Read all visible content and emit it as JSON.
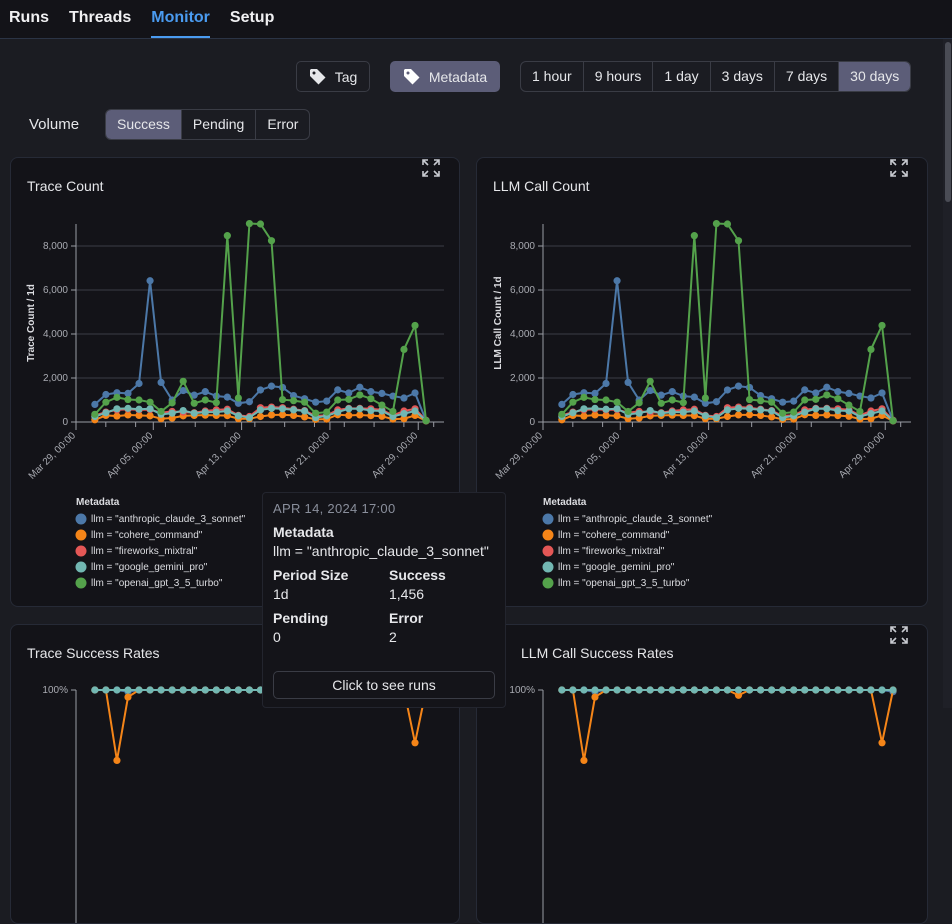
{
  "nav": {
    "tabs": [
      {
        "label": "Runs"
      },
      {
        "label": "Threads"
      },
      {
        "label": "Monitor",
        "active": true
      },
      {
        "label": "Setup"
      }
    ]
  },
  "group_by": {
    "tag_label": "Tag",
    "metadata_label": "Metadata",
    "selected": "Metadata"
  },
  "time_range": {
    "options": [
      "1 hour",
      "9 hours",
      "1 day",
      "3 days",
      "7 days",
      "30 days"
    ],
    "selected": "30 days"
  },
  "volume": {
    "label": "Volume",
    "options": [
      "Success",
      "Pending",
      "Error"
    ],
    "selected": "Success"
  },
  "colors": {
    "anthropic": "#4c78a8",
    "cohere": "#f58518",
    "fireworks": "#e45756",
    "gemini": "#72b7b2",
    "openai": "#54a24b",
    "accent": "#4a9bf0",
    "selected": "#5c5d78"
  },
  "cards": [
    {
      "title": "Trace Count"
    },
    {
      "title": "LLM Call Count"
    },
    {
      "title": "Trace Success Rates"
    },
    {
      "title": "LLM Call Success Rates"
    }
  ],
  "tooltip": {
    "date": "APR 14, 2024 17:00",
    "fields": [
      {
        "label": "Metadata",
        "value": "llm = \"anthropic_claude_3_sonnet\""
      },
      {
        "label": "Period Size",
        "value": "1d"
      },
      {
        "label": "Success",
        "value": "1,456"
      },
      {
        "label": "Pending",
        "value": "0"
      },
      {
        "label": "Error",
        "value": "2"
      }
    ],
    "button": "Click to see runs"
  },
  "chart_data": [
    {
      "type": "line",
      "title": "Trace Count",
      "ylabel": "Trace Count / 1d",
      "ylim": [
        0,
        9000
      ],
      "yticks": [
        0,
        2000,
        4000,
        6000,
        8000
      ],
      "ytick_labels": [
        "0",
        "2,000",
        "4,000",
        "6,000",
        "8,000"
      ],
      "xlim": [
        "2024-03-29T00:00",
        "2024-05-01T08:00"
      ],
      "xticks": [
        "2024-03-29T00:00",
        "2024-04-05T00:00",
        "2024-04-13T00:00",
        "2024-04-21T00:00",
        "2024-04-29T00:00"
      ],
      "xtick_labels": [
        "Mar 29, 00:00",
        "Apr 05, 00:00",
        "Apr 13, 00:00",
        "Apr 21, 00:00",
        "Apr 29, 00:00"
      ],
      "grid": true,
      "legend_title": "Metadata",
      "legend_position": "bottom-left",
      "x_start": "2024-03-30T17:00",
      "x_step_days": 1,
      "series": [
        {
          "name": "llm = \"anthropic_claude_3_sonnet\"",
          "color": "#4c78a8",
          "values": [
            800,
            1250,
            1330,
            1300,
            1750,
            6420,
            1800,
            1000,
            1430,
            1220,
            1380,
            1180,
            1130,
            850,
            920,
            1456,
            1630,
            1570,
            1200,
            1060,
            900,
            950,
            1460,
            1320,
            1580,
            1380,
            1300,
            1180,
            1090,
            1320,
            60
          ]
        },
        {
          "name": "llm = \"cohere_command\"",
          "color": "#f58518",
          "values": [
            100,
            300,
            270,
            320,
            300,
            280,
            150,
            180,
            280,
            300,
            310,
            300,
            290,
            150,
            150,
            250,
            320,
            330,
            300,
            230,
            120,
            130,
            330,
            300,
            320,
            290,
            260,
            130,
            150,
            300,
            50
          ]
        },
        {
          "name": "llm = \"fireworks_mixtral\"",
          "color": "#e45756",
          "values": [
            300,
            450,
            550,
            580,
            550,
            560,
            420,
            480,
            450,
            420,
            500,
            550,
            580,
            300,
            250,
            650,
            680,
            650,
            580,
            520,
            280,
            300,
            550,
            620,
            620,
            600,
            550,
            300,
            500,
            600,
            80
          ]
        },
        {
          "name": "llm = \"google_gemini_pro\"",
          "color": "#72b7b2",
          "values": [
            250,
            420,
            600,
            620,
            580,
            600,
            350,
            400,
            520,
            400,
            450,
            450,
            500,
            280,
            200,
            550,
            620,
            600,
            550,
            500,
            200,
            280,
            450,
            600,
            600,
            520,
            500,
            250,
            380,
            500,
            60
          ]
        },
        {
          "name": "llm = \"openai_gpt_3_5_turbo\"",
          "color": "#54a24b",
          "values": [
            350,
            900,
            1120,
            1020,
            1000,
            900,
            480,
            870,
            1850,
            850,
            1000,
            880,
            8470,
            1090,
            9020,
            9000,
            8240,
            1020,
            970,
            900,
            400,
            450,
            1000,
            1030,
            1230,
            1060,
            770,
            480,
            3300,
            4390,
            60
          ]
        }
      ]
    },
    {
      "type": "line",
      "title": "LLM Call Count",
      "ylabel": "LLM Call Count / 1d",
      "ylim": [
        0,
        9000
      ],
      "yticks": [
        0,
        2000,
        4000,
        6000,
        8000
      ],
      "ytick_labels": [
        "0",
        "2,000",
        "4,000",
        "6,000",
        "8,000"
      ],
      "xlim": [
        "2024-03-29T00:00",
        "2024-05-01T08:00"
      ],
      "xticks": [
        "2024-03-29T00:00",
        "2024-04-05T00:00",
        "2024-04-13T00:00",
        "2024-04-21T00:00",
        "2024-04-29T00:00"
      ],
      "xtick_labels": [
        "Mar 29, 00:00",
        "Apr 05, 00:00",
        "Apr 13, 00:00",
        "Apr 21, 00:00",
        "Apr 29, 00:00"
      ],
      "grid": true,
      "legend_title": "Metadata",
      "legend_position": "bottom-left",
      "x_start": "2024-03-30T17:00",
      "x_step_days": 1,
      "series": [
        {
          "name": "llm = \"anthropic_claude_3_sonnet\"",
          "color": "#4c78a8",
          "values": [
            800,
            1250,
            1330,
            1300,
            1750,
            6420,
            1800,
            1000,
            1430,
            1220,
            1380,
            1180,
            1130,
            850,
            920,
            1456,
            1630,
            1570,
            1200,
            1060,
            900,
            950,
            1460,
            1320,
            1580,
            1380,
            1300,
            1180,
            1090,
            1320,
            60
          ]
        },
        {
          "name": "llm = \"cohere_command\"",
          "color": "#f58518",
          "values": [
            100,
            300,
            270,
            320,
            300,
            280,
            150,
            180,
            280,
            300,
            310,
            300,
            290,
            150,
            150,
            250,
            320,
            330,
            300,
            230,
            120,
            130,
            330,
            300,
            320,
            290,
            260,
            130,
            150,
            300,
            50
          ]
        },
        {
          "name": "llm = \"fireworks_mixtral\"",
          "color": "#e45756",
          "values": [
            300,
            450,
            550,
            580,
            550,
            560,
            420,
            480,
            450,
            420,
            500,
            550,
            580,
            300,
            250,
            650,
            680,
            650,
            580,
            520,
            280,
            300,
            550,
            620,
            620,
            600,
            550,
            300,
            500,
            600,
            80
          ]
        },
        {
          "name": "llm = \"google_gemini_pro\"",
          "color": "#72b7b2",
          "values": [
            250,
            420,
            600,
            620,
            580,
            600,
            350,
            400,
            520,
            400,
            450,
            450,
            500,
            280,
            200,
            550,
            620,
            600,
            550,
            500,
            200,
            280,
            450,
            600,
            600,
            520,
            500,
            250,
            380,
            500,
            60
          ]
        },
        {
          "name": "llm = \"openai_gpt_3_5_turbo\"",
          "color": "#54a24b",
          "values": [
            350,
            900,
            1120,
            1020,
            1000,
            900,
            480,
            870,
            1850,
            850,
            1000,
            880,
            8470,
            1090,
            9020,
            9000,
            8240,
            1020,
            970,
            900,
            400,
            450,
            1000,
            1030,
            1230,
            1060,
            770,
            480,
            3300,
            4390,
            60
          ]
        }
      ]
    },
    {
      "type": "line",
      "title": "Trace Success Rates",
      "ylim": [
        0,
        100
      ],
      "yticks": [
        100
      ],
      "ytick_labels": [
        "100%"
      ],
      "xlim": [
        "2024-03-29T00:00",
        "2024-05-01T08:00"
      ],
      "x_start": "2024-03-30T17:00",
      "x_step_days": 1,
      "series": [
        {
          "color": "#4c78a8",
          "values": [
            100,
            100,
            100,
            99,
            100,
            100,
            100,
            100,
            100,
            100,
            100,
            100,
            100,
            100,
            100,
            100,
            100,
            100,
            100,
            100,
            100,
            100,
            100,
            100,
            100,
            100,
            100,
            100,
            100,
            100,
            100
          ]
        },
        {
          "color": "#f58518",
          "values": [
            100,
            100,
            60,
            96,
            100,
            100,
            100,
            100,
            100,
            100,
            100,
            100,
            100,
            100,
            100,
            100,
            100,
            100,
            100,
            100,
            100,
            100,
            100,
            100,
            100,
            100,
            100,
            100,
            100,
            70,
            100
          ]
        },
        {
          "color": "#72b7b2",
          "values": [
            100,
            100,
            100,
            100,
            100,
            100,
            100,
            100,
            100,
            100,
            100,
            100,
            100,
            100,
            100,
            100,
            100,
            100,
            100,
            100,
            100,
            100,
            100,
            100,
            100,
            100,
            100,
            100,
            100,
            100,
            100
          ]
        }
      ]
    },
    {
      "type": "line",
      "title": "LLM Call Success Rates",
      "ylim": [
        0,
        100
      ],
      "yticks": [
        100
      ],
      "ytick_labels": [
        "100%"
      ],
      "xlim": [
        "2024-03-29T00:00",
        "2024-05-01T08:00"
      ],
      "x_start": "2024-03-30T17:00",
      "x_step_days": 1,
      "series": [
        {
          "color": "#4c78a8",
          "values": [
            100,
            100,
            100,
            99,
            100,
            100,
            100,
            100,
            100,
            100,
            100,
            100,
            100,
            100,
            100,
            100,
            100,
            100,
            100,
            100,
            100,
            100,
            100,
            100,
            100,
            100,
            100,
            100,
            100,
            100,
            99
          ]
        },
        {
          "color": "#f58518",
          "values": [
            100,
            100,
            60,
            96,
            100,
            100,
            100,
            100,
            100,
            100,
            100,
            100,
            100,
            100,
            100,
            100,
            97,
            100,
            100,
            100,
            100,
            100,
            100,
            100,
            100,
            100,
            100,
            100,
            100,
            70,
            100
          ]
        },
        {
          "color": "#72b7b2",
          "values": [
            100,
            100,
            100,
            100,
            100,
            100,
            100,
            100,
            100,
            100,
            100,
            100,
            100,
            100,
            100,
            100,
            100,
            100,
            100,
            100,
            100,
            100,
            100,
            100,
            100,
            100,
            100,
            100,
            100,
            100,
            100
          ]
        }
      ]
    }
  ]
}
